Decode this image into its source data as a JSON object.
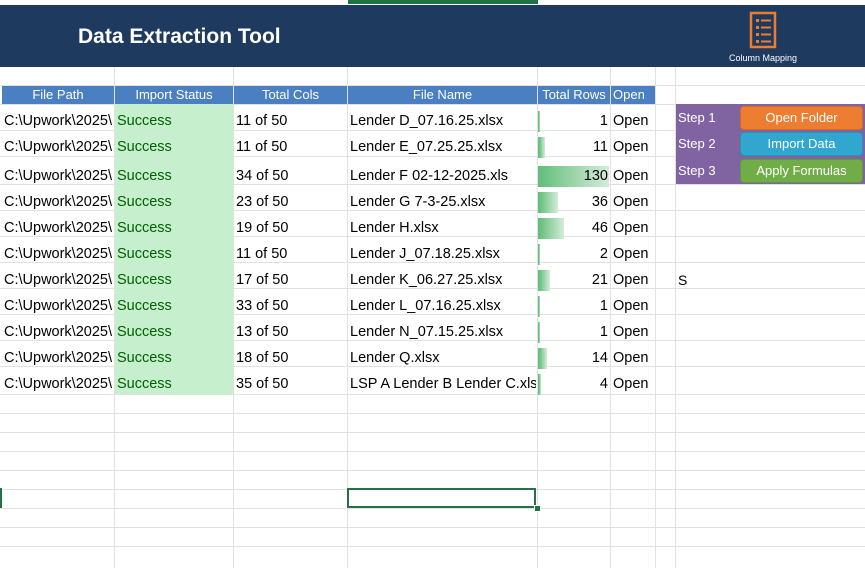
{
  "banner": {
    "title": "Data Extraction Tool",
    "column_mapping_label": "Column Mapping"
  },
  "headers": {
    "file_path": "File Path",
    "import_status": "Import Status",
    "total_cols": "Total Cols",
    "file_name": "File Name",
    "total_rows": "Total Rows",
    "open": "Open"
  },
  "rows": [
    {
      "path": "C:\\Upwork\\2025\\",
      "status": "Success",
      "cols": "11 of 50",
      "name": "Lender D_07.16.25.xlsx",
      "rows": "1",
      "open": "Open"
    },
    {
      "path": "C:\\Upwork\\2025\\",
      "status": "Success",
      "cols": "11 of 50",
      "name": "Lender E_07.25.25.xlsx",
      "rows": "11",
      "open": "Open"
    },
    {
      "path": "C:\\Upwork\\2025\\",
      "status": "Success",
      "cols": "34 of 50",
      "name": "Lender F 02-12-2025.xls",
      "rows": "130",
      "open": "Open"
    },
    {
      "path": "C:\\Upwork\\2025\\",
      "status": "Success",
      "cols": "23 of 50",
      "name": "Lender G 7-3-25.xlsx",
      "rows": "36",
      "open": "Open"
    },
    {
      "path": "C:\\Upwork\\2025\\",
      "status": "Success",
      "cols": "19 of 50",
      "name": "Lender H.xlsx",
      "rows": "46",
      "open": "Open"
    },
    {
      "path": "C:\\Upwork\\2025\\",
      "status": "Success",
      "cols": "11 of 50",
      "name": "Lender J_07.18.25.xlsx",
      "rows": "2",
      "open": "Open"
    },
    {
      "path": "C:\\Upwork\\2025\\",
      "status": "Success",
      "cols": "17 of 50",
      "name": "Lender K_06.27.25.xlsx",
      "rows": "21",
      "open": "Open"
    },
    {
      "path": "C:\\Upwork\\2025\\",
      "status": "Success",
      "cols": "33 of 50",
      "name": "Lender L_07.16.25.xlsx",
      "rows": "1",
      "open": "Open"
    },
    {
      "path": "C:\\Upwork\\2025\\",
      "status": "Success",
      "cols": "13 of 50",
      "name": "Lender N_07.15.25.xlsx",
      "rows": "1",
      "open": "Open"
    },
    {
      "path": "C:\\Upwork\\2025\\",
      "status": "Success",
      "cols": "18 of 50",
      "name": "Lender Q.xlsx",
      "rows": "14",
      "open": "Open"
    },
    {
      "path": "C:\\Upwork\\2025\\",
      "status": "Success",
      "cols": "35 of 50",
      "name": "LSP A Lender B Lender C.xls",
      "rows": "4",
      "open": "Open"
    }
  ],
  "total_rows_max": 130,
  "steps": [
    {
      "label": "Step 1",
      "button": "Open Folder"
    },
    {
      "label": "Step 2",
      "button": "Import Data"
    },
    {
      "label": "Step 3",
      "button": "Apply Formulas"
    }
  ],
  "side_cell_text": "S",
  "colors": {
    "banner": "#1f3a5f",
    "header": "#4a7fc1",
    "status_fill": "#c6efce",
    "status_text": "#006100",
    "steps_panel": "#8064a2",
    "btn_orange": "#ed7d31",
    "btn_blue": "#31a6cf",
    "btn_green": "#70ad47"
  },
  "icons": {
    "column_mapping": "list-checklist-icon"
  }
}
